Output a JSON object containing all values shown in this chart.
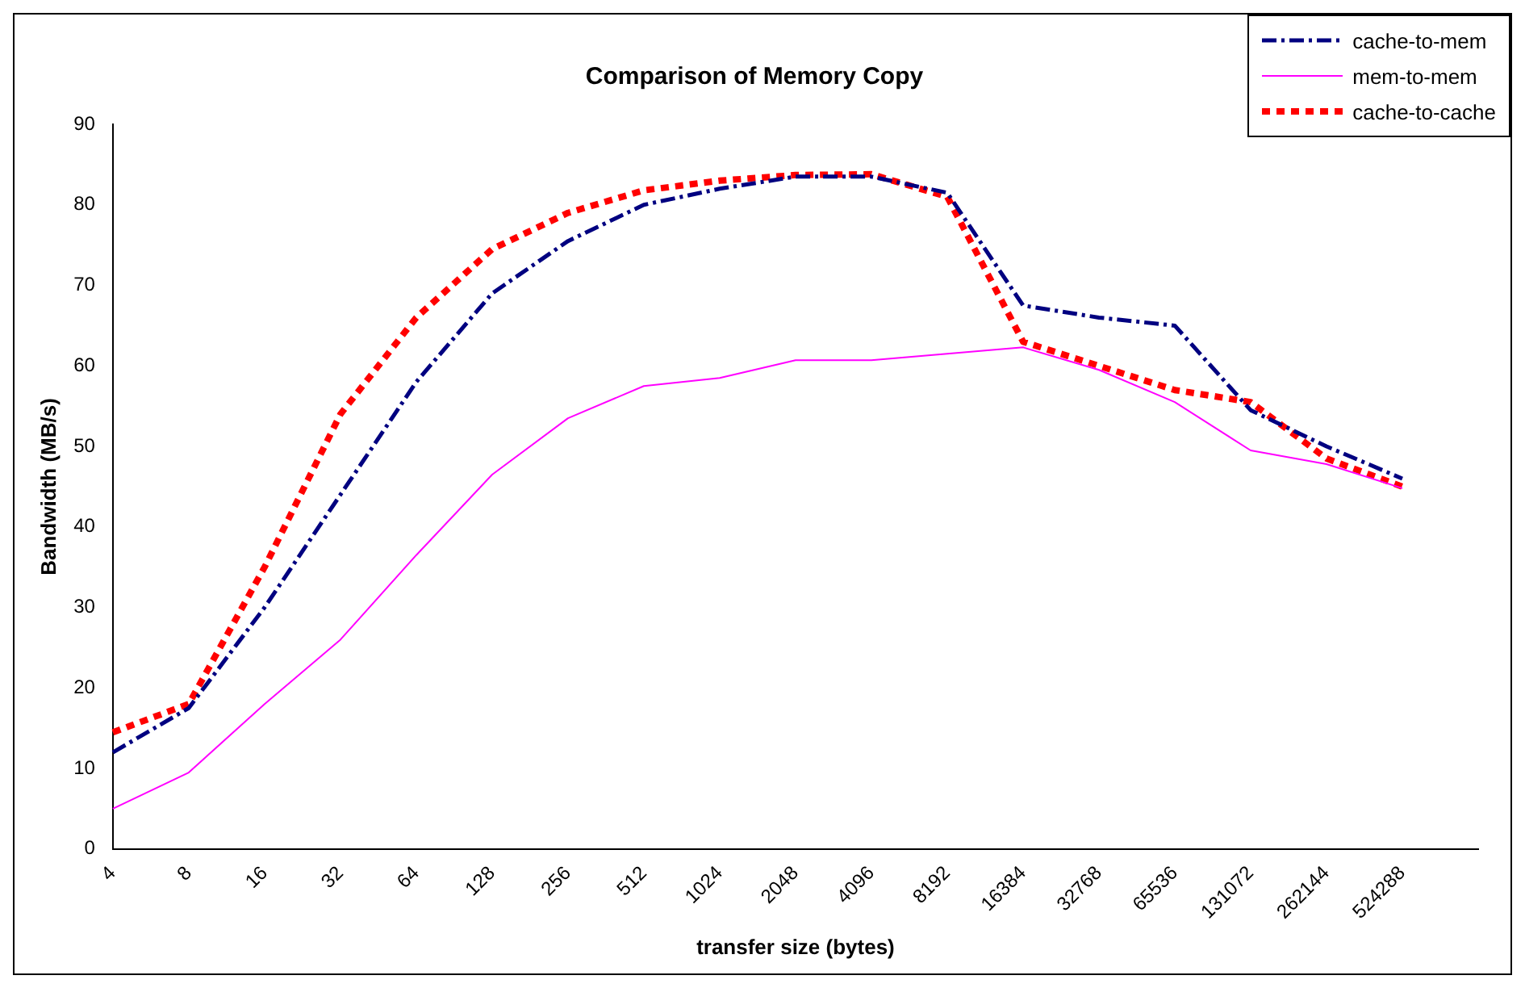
{
  "chart_data": {
    "type": "line",
    "title": "Comparison of Memory Copy",
    "xlabel": "transfer size (bytes)",
    "ylabel": "Bandwidth (MB/s)",
    "categories": [
      "4",
      "8",
      "16",
      "32",
      "64",
      "128",
      "256",
      "512",
      "1024",
      "2048",
      "4096",
      "8192",
      "16384",
      "32768",
      "65536",
      "131072",
      "262144",
      "524288",
      null
    ],
    "series": [
      {
        "name": "cache-to-mem",
        "color": "#000080",
        "line_style": "dashed",
        "values": [
          12,
          17.5,
          30,
          44,
          58,
          69,
          75.5,
          80,
          82,
          83.5,
          83.5,
          81.5,
          67.5,
          66,
          65,
          54.5,
          50,
          46,
          null
        ]
      },
      {
        "name": "mem-to-mem",
        "color": "#ff00ff",
        "line_style": "solid",
        "values": [
          5,
          9.5,
          18,
          26,
          36.5,
          46.5,
          53.5,
          57.5,
          58.5,
          60.7,
          60.7,
          61.5,
          62.3,
          59.5,
          55.5,
          49.5,
          47.8,
          44.8,
          null
        ]
      },
      {
        "name": "cache-to-cache",
        "color": "#ff0000",
        "line_style": "dotted",
        "values": [
          14.5,
          18,
          35,
          54,
          66,
          74.5,
          79,
          81.8,
          83,
          83.7,
          83.8,
          81,
          63,
          60,
          57,
          55.5,
          48.5,
          45,
          null
        ]
      }
    ],
    "ylim": [
      0,
      90
    ],
    "yticks": [
      0,
      10,
      20,
      30,
      40,
      50,
      60,
      70,
      80,
      90
    ],
    "grid": false,
    "legend": "top right",
    "marker": "none"
  }
}
